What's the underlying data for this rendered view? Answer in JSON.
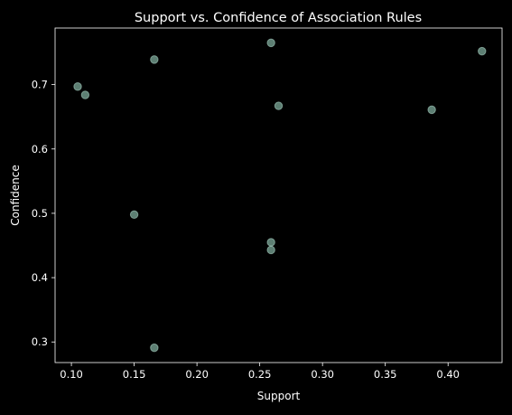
{
  "colors": {
    "background": "#000000",
    "axes": "#ffffff",
    "text": "#ffffff",
    "marker_fill": "#7ca99a",
    "marker_edge": "#a8d0c3"
  },
  "chart_data": {
    "type": "scatter",
    "title": "Support vs. Confidence of Association Rules",
    "xlabel": "Support",
    "ylabel": "Confidence",
    "xlim": [
      0.087,
      0.443
    ],
    "ylim": [
      0.268,
      0.788
    ],
    "xticks": [
      0.1,
      0.15,
      0.2,
      0.25,
      0.3,
      0.35,
      0.4
    ],
    "xtick_labels": [
      "0.10",
      "0.15",
      "0.20",
      "0.25",
      "0.30",
      "0.35",
      "0.40"
    ],
    "yticks": [
      0.3,
      0.4,
      0.5,
      0.6,
      0.7
    ],
    "ytick_labels": [
      "0.3",
      "0.4",
      "0.5",
      "0.6",
      "0.7"
    ],
    "grid": false,
    "points": [
      {
        "x": 0.105,
        "y": 0.697
      },
      {
        "x": 0.111,
        "y": 0.684
      },
      {
        "x": 0.15,
        "y": 0.498
      },
      {
        "x": 0.166,
        "y": 0.739
      },
      {
        "x": 0.166,
        "y": 0.291
      },
      {
        "x": 0.259,
        "y": 0.765
      },
      {
        "x": 0.259,
        "y": 0.455
      },
      {
        "x": 0.259,
        "y": 0.443
      },
      {
        "x": 0.265,
        "y": 0.667
      },
      {
        "x": 0.387,
        "y": 0.661
      },
      {
        "x": 0.427,
        "y": 0.752
      }
    ]
  }
}
